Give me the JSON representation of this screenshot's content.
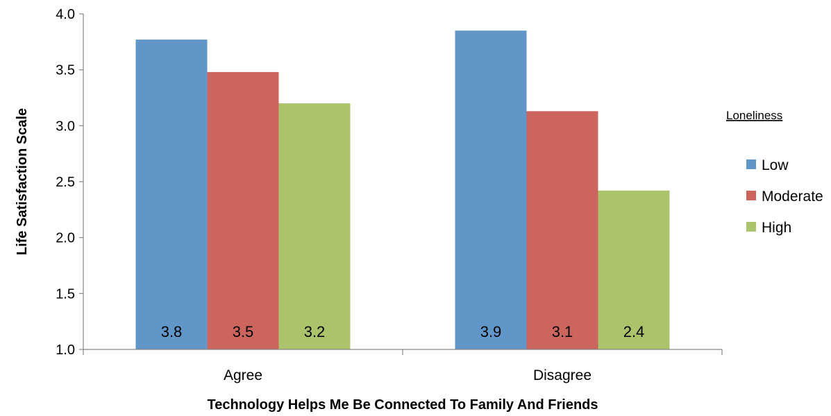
{
  "chart_data": {
    "type": "bar",
    "title": "",
    "xlabel": "Technology Helps Me Be Connected To Family And Friends",
    "ylabel": "Life Satisfaction Scale",
    "ylim": [
      1.0,
      4.0
    ],
    "yticks": [
      "1.0",
      "1.5",
      "2.0",
      "2.5",
      "3.0",
      "3.5",
      "4.0"
    ],
    "categories": [
      "Agree",
      "Disagree"
    ],
    "legend_title": "Loneliness",
    "legend_position": "right",
    "grid": false,
    "series": [
      {
        "name": "Low",
        "values": [
          3.77,
          3.85
        ],
        "labels": [
          "3.8",
          "3.9"
        ],
        "color": "#6096C8"
      },
      {
        "name": "Moderate",
        "values": [
          3.48,
          3.13
        ],
        "labels": [
          "3.5",
          "3.1"
        ],
        "color": "#CD655F"
      },
      {
        "name": "High",
        "values": [
          3.2,
          2.42
        ],
        "labels": [
          "3.2",
          "2.4"
        ],
        "color": "#A9C46B"
      }
    ]
  }
}
